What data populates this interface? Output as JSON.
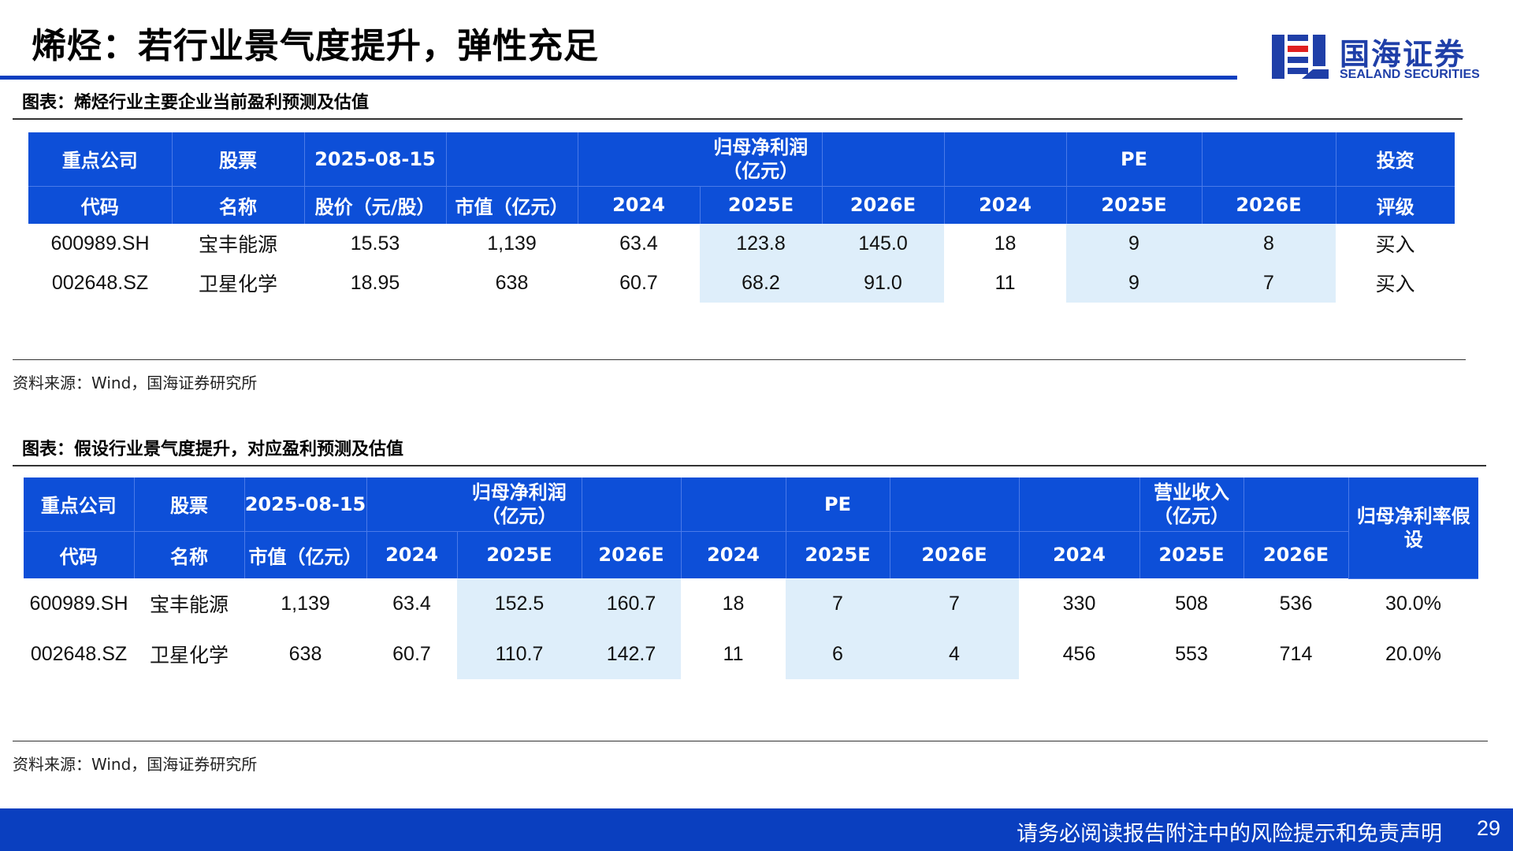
{
  "slide": {
    "title": "烯烃：若行业景气度提升，弹性充足",
    "logo_cn": "国海证券",
    "logo_en": "SEALAND SECURITIES",
    "colors": {
      "primary": "#0d4fd8",
      "highlight": "#deeefa"
    }
  },
  "table1": {
    "title": "图表：烯烃行业主要企业当前盈利预测及估值",
    "header1": [
      "重点公司",
      "股票",
      "2025-08-15",
      "",
      "",
      "归母净利润（亿元）",
      "",
      "",
      "PE",
      "",
      "投资"
    ],
    "header2": [
      "代码",
      "名称",
      "股价（元/股）",
      "市值（亿元）",
      "2024",
      "2025E",
      "2026E",
      "2024",
      "2025E",
      "2026E",
      "评级"
    ],
    "rows": [
      [
        "600989.SH",
        "宝丰能源",
        "15.53",
        "1,139",
        "63.4",
        "123.8",
        "145.0",
        "18",
        "9",
        "8",
        "买入"
      ],
      [
        "002648.SZ",
        "卫星化学",
        "18.95",
        "638",
        "60.7",
        "68.2",
        "91.0",
        "11",
        "9",
        "7",
        "买入"
      ]
    ],
    "source": "资料来源：Wind，国海证券研究所"
  },
  "table2": {
    "title": "图表：假设行业景气度提升，对应盈利预测及估值",
    "header1": [
      "重点公司",
      "股票",
      "2025-08-15",
      "",
      "归母净利润（亿元）",
      "",
      "",
      "PE",
      "",
      "",
      "营业收入（亿元）",
      "",
      "归母净利率假设"
    ],
    "header2": [
      "代码",
      "名称",
      "市值（亿元）",
      "2024",
      "2025E",
      "2026E",
      "2024",
      "2025E",
      "2026E",
      "2024",
      "2025E",
      "2026E"
    ],
    "rows": [
      [
        "600989.SH",
        "宝丰能源",
        "1,139",
        "63.4",
        "152.5",
        "160.7",
        "18",
        "7",
        "7",
        "330",
        "508",
        "536",
        "30.0%"
      ],
      [
        "002648.SZ",
        "卫星化学",
        "638",
        "60.7",
        "110.7",
        "142.7",
        "11",
        "6",
        "4",
        "456",
        "553",
        "714",
        "20.0%"
      ]
    ],
    "source": "资料来源：Wind，国海证券研究所"
  },
  "footer": {
    "disclaimer": "请务必阅读报告附注中的风险提示和免责声明",
    "page": "29"
  }
}
